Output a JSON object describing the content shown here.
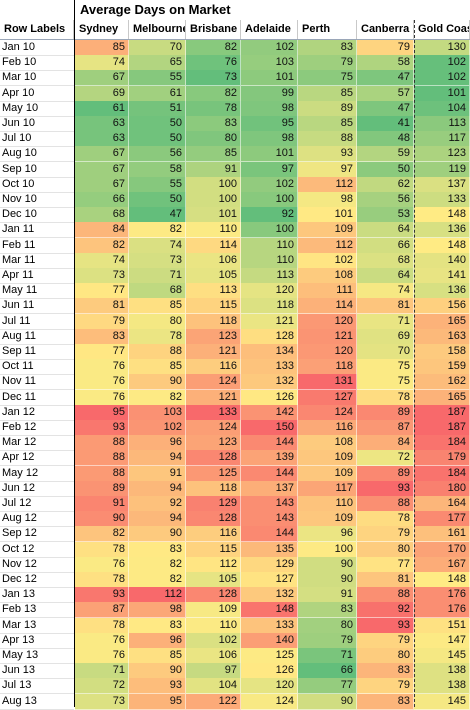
{
  "title": "Average Days on Market",
  "header": {
    "row_labels": "Row Labels",
    "columns": [
      "Sydney",
      "Melbourne",
      "Brisbane",
      "Adelaide",
      "Perth",
      "Canberra",
      "Gold Coast"
    ]
  },
  "rows": [
    {
      "label": "Jan 10",
      "values": [
        85,
        70,
        82,
        102,
        83,
        79,
        130
      ]
    },
    {
      "label": "Feb 10",
      "values": [
        74,
        65,
        76,
        103,
        79,
        58,
        102
      ]
    },
    {
      "label": "Mar 10",
      "values": [
        67,
        55,
        73,
        101,
        75,
        47,
        102
      ]
    },
    {
      "label": "Apr 10",
      "values": [
        69,
        61,
        82,
        99,
        85,
        57,
        101
      ]
    },
    {
      "label": "May 10",
      "values": [
        61,
        51,
        78,
        98,
        89,
        47,
        104
      ]
    },
    {
      "label": "Jun 10",
      "values": [
        63,
        50,
        83,
        95,
        85,
        41,
        113
      ]
    },
    {
      "label": "Jul 10",
      "values": [
        63,
        50,
        80,
        98,
        88,
        48,
        117
      ]
    },
    {
      "label": "Aug 10",
      "values": [
        67,
        56,
        85,
        101,
        93,
        59,
        123
      ]
    },
    {
      "label": "Sep 10",
      "values": [
        67,
        58,
        91,
        97,
        97,
        50,
        119
      ]
    },
    {
      "label": "Oct 10",
      "values": [
        67,
        55,
        100,
        102,
        112,
        62,
        137
      ]
    },
    {
      "label": "Nov 10",
      "values": [
        66,
        50,
        100,
        100,
        98,
        56,
        133
      ]
    },
    {
      "label": "Dec 10",
      "values": [
        68,
        47,
        101,
        92,
        101,
        53,
        148
      ]
    },
    {
      "label": "Jan 11",
      "values": [
        84,
        82,
        110,
        100,
        109,
        64,
        136
      ]
    },
    {
      "label": "Feb 11",
      "values": [
        82,
        74,
        114,
        110,
        112,
        66,
        148
      ]
    },
    {
      "label": "Mar 11",
      "values": [
        74,
        73,
        106,
        110,
        102,
        68,
        140
      ]
    },
    {
      "label": "Apr 11",
      "values": [
        73,
        71,
        105,
        113,
        108,
        64,
        141
      ]
    },
    {
      "label": "May 11",
      "values": [
        77,
        68,
        113,
        120,
        111,
        74,
        136
      ]
    },
    {
      "label": "Jun 11",
      "values": [
        81,
        85,
        115,
        118,
        114,
        81,
        156
      ]
    },
    {
      "label": "Jul 11",
      "values": [
        79,
        80,
        118,
        121,
        120,
        71,
        165
      ]
    },
    {
      "label": "Aug 11",
      "values": [
        83,
        78,
        123,
        128,
        121,
        69,
        163
      ]
    },
    {
      "label": "Sep 11",
      "values": [
        77,
        88,
        121,
        134,
        120,
        70,
        158
      ]
    },
    {
      "label": "Oct 11",
      "values": [
        76,
        85,
        116,
        133,
        118,
        75,
        159
      ]
    },
    {
      "label": "Nov 11",
      "values": [
        76,
        90,
        124,
        132,
        131,
        75,
        162
      ]
    },
    {
      "label": "Dec 11",
      "values": [
        76,
        82,
        121,
        126,
        127,
        78,
        165
      ]
    },
    {
      "label": "Jan 12",
      "values": [
        95,
        103,
        133,
        142,
        124,
        89,
        187
      ]
    },
    {
      "label": "Feb 12",
      "values": [
        93,
        102,
        124,
        150,
        116,
        87,
        187
      ]
    },
    {
      "label": "Mar 12",
      "values": [
        88,
        96,
        123,
        144,
        108,
        84,
        184
      ]
    },
    {
      "label": "Apr 12",
      "values": [
        88,
        94,
        128,
        139,
        109,
        72,
        179
      ]
    },
    {
      "label": "May 12",
      "values": [
        88,
        91,
        125,
        144,
        109,
        89,
        184
      ]
    },
    {
      "label": "Jun 12",
      "values": [
        89,
        94,
        118,
        137,
        117,
        93,
        180
      ]
    },
    {
      "label": "Jul 12",
      "values": [
        91,
        92,
        129,
        143,
        110,
        88,
        164
      ]
    },
    {
      "label": "Aug 12",
      "values": [
        90,
        94,
        128,
        143,
        109,
        78,
        177
      ]
    },
    {
      "label": "Sep 12",
      "values": [
        82,
        90,
        116,
        144,
        96,
        79,
        161
      ]
    },
    {
      "label": "Oct 12",
      "values": [
        78,
        83,
        115,
        135,
        100,
        80,
        170
      ]
    },
    {
      "label": "Nov 12",
      "values": [
        76,
        82,
        112,
        129,
        90,
        77,
        167
      ]
    },
    {
      "label": "Dec 12",
      "values": [
        78,
        82,
        105,
        127,
        90,
        81,
        148
      ]
    },
    {
      "label": "Jan 13",
      "values": [
        93,
        112,
        128,
        132,
        91,
        88,
        176
      ]
    },
    {
      "label": "Feb 13",
      "values": [
        87,
        98,
        109,
        148,
        83,
        92,
        176
      ]
    },
    {
      "label": "Mar 13",
      "values": [
        78,
        83,
        110,
        133,
        80,
        93,
        151
      ]
    },
    {
      "label": "Apr 13",
      "values": [
        76,
        96,
        102,
        140,
        79,
        79,
        147
      ]
    },
    {
      "label": "May 13",
      "values": [
        76,
        85,
        106,
        125,
        71,
        80,
        145
      ]
    },
    {
      "label": "Jun 13",
      "values": [
        71,
        90,
        97,
        126,
        66,
        83,
        138
      ]
    },
    {
      "label": "Jul 13",
      "values": [
        72,
        93,
        104,
        120,
        77,
        79,
        138
      ]
    },
    {
      "label": "Aug 13",
      "values": [
        73,
        95,
        122,
        124,
        90,
        83,
        145
      ]
    }
  ],
  "colors": {
    "low": "#63be7b",
    "mid": "#ffeb84",
    "high": "#f8696b"
  }
}
